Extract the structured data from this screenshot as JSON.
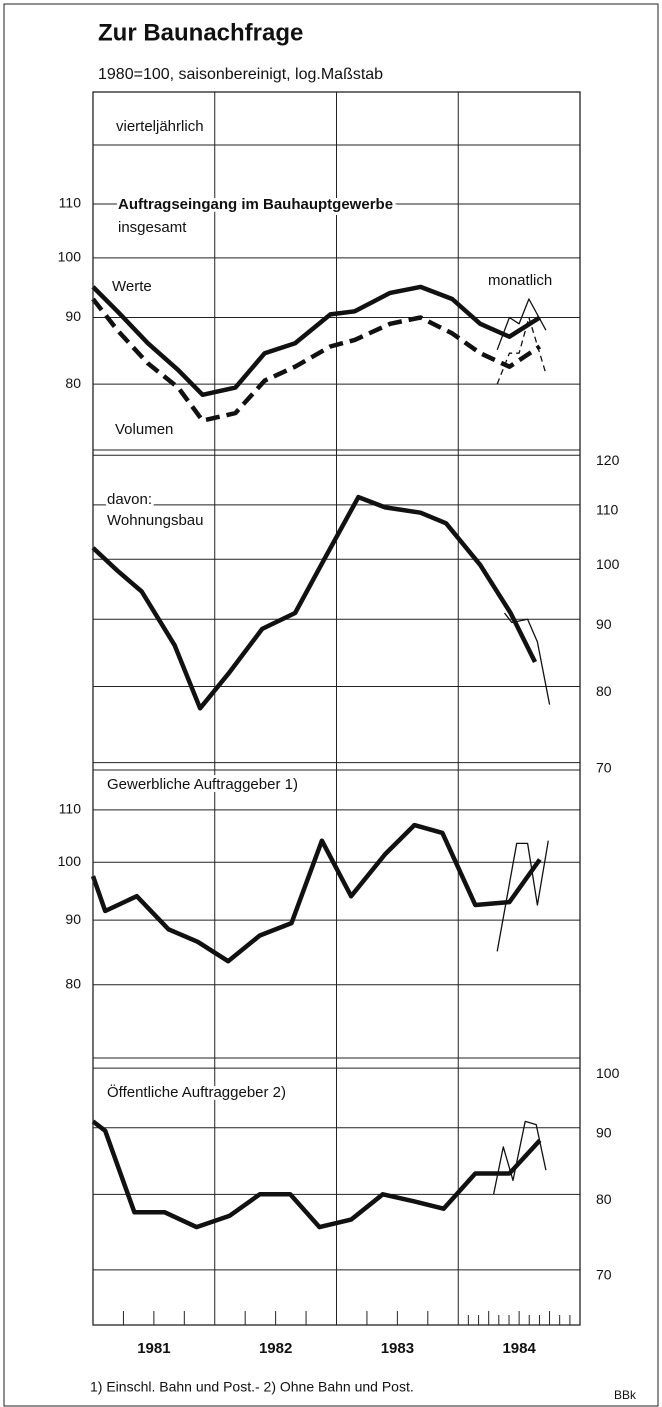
{
  "title": "Zur Baunachfrage",
  "subtitle": "1980=100, saisonbereinigt, log.Maßstab",
  "frequency_label": "vierteljährlich",
  "footnote": "1) Einschl. Bahn und Post.- 2) Ohne Bahn und Post.",
  "source": "BBk",
  "xlim": [
    1981,
    1985
  ],
  "xticks": [
    {
      "value": 1981.5,
      "label": "1981"
    },
    {
      "value": 1982.5,
      "label": "1982"
    },
    {
      "value": 1983.5,
      "label": "1983"
    },
    {
      "value": 1984.5,
      "label": "1984"
    }
  ],
  "x_gridlines": [
    1982,
    1983,
    1984
  ],
  "x_minor_ticks": [
    1981.25,
    1981.5,
    1981.75,
    1982.25,
    1982.5,
    1982.75,
    1983.25,
    1983.5,
    1983.75,
    1984.083,
    1984.167,
    1984.25,
    1984.333,
    1984.417,
    1984.5,
    1984.583,
    1984.667,
    1984.75,
    1984.833,
    1984.917
  ],
  "chart_data": [
    {
      "type": "line",
      "log_scale": true,
      "y_axis_side": "left",
      "labels": [
        "Auftragseingang im Bauhauptgewerbe",
        "insgesamt"
      ],
      "ylim": [
        71.2,
        134.1
      ],
      "yticks": [
        80,
        90,
        100,
        110
      ],
      "grid": true,
      "series": [
        {
          "name": "Werte",
          "color": "#111111",
          "thick": true,
          "dashed": false,
          "x": [
            1981,
            1981.2,
            1981.45,
            1981.7,
            1981.9,
            1982.17,
            1982.41,
            1982.66,
            1982.95,
            1983.15,
            1983.44,
            1983.69,
            1983.95,
            1984.18,
            1984.42,
            1984.67
          ],
          "values": [
            95,
            91,
            86,
            82,
            78.5,
            79.5,
            84.5,
            86,
            90.5,
            91,
            94,
            95,
            93,
            89,
            87,
            90
          ]
        },
        {
          "name": "Volumen",
          "color": "#111111",
          "thick": true,
          "dashed": true,
          "x": [
            1981,
            1981.2,
            1981.45,
            1981.7,
            1981.9,
            1982.17,
            1982.41,
            1982.66,
            1982.95,
            1983.15,
            1983.44,
            1983.69,
            1983.95,
            1984.18,
            1984.42,
            1984.67
          ],
          "values": [
            93,
            88,
            83,
            79.5,
            75,
            76,
            80.5,
            82.5,
            85.5,
            86.5,
            89,
            90,
            87.5,
            84.5,
            82.5,
            85.5
          ]
        },
        {
          "name": "monatlich",
          "color": "#111111",
          "thick": false,
          "dashed": false,
          "x": [
            1984.32,
            1984.42,
            1984.5,
            1984.58,
            1984.72
          ],
          "values": [
            85,
            90,
            89,
            93,
            88
          ]
        },
        {
          "color": "#111111",
          "thick": false,
          "dashed": true,
          "x": [
            1984.32,
            1984.42,
            1984.5,
            1984.58,
            1984.72
          ],
          "values": [
            80,
            84.5,
            84.5,
            90,
            81.5
          ]
        }
      ]
    },
    {
      "type": "line",
      "log_scale": true,
      "y_axis_side": "right",
      "labels": [
        "davon:",
        "Wohnungsbau"
      ],
      "ylim": [
        69.1,
        121.1
      ],
      "yticks": [
        70,
        80,
        90,
        100,
        110,
        120
      ],
      "grid": true,
      "series": [
        {
          "color": "#111111",
          "thick": true,
          "dashed": false,
          "x": [
            1981,
            1981.2,
            1981.4,
            1981.67,
            1981.88,
            1982.12,
            1982.39,
            1982.66,
            1982.9,
            1983.18,
            1983.4,
            1983.69,
            1983.9,
            1984.18,
            1984.43,
            1984.63
          ],
          "values": [
            102,
            98,
            94.5,
            86,
            77,
            82,
            88.5,
            91,
            100,
            111.5,
            109.5,
            108.5,
            106.5,
            99,
            91,
            83.5
          ]
        },
        {
          "color": "#111111",
          "thick": false,
          "dashed": false,
          "x": [
            1984.38,
            1984.44,
            1984.57,
            1984.65,
            1984.75
          ],
          "values": [
            91,
            89.5,
            90,
            86.5,
            77.5
          ]
        }
      ]
    },
    {
      "type": "line",
      "log_scale": true,
      "y_axis_side": "left",
      "labels": [
        "Gewerbliche Auftraggeber 1)"
      ],
      "ylim": [
        70.0,
        118.3
      ],
      "yticks": [
        80,
        90,
        100,
        110
      ],
      "grid": true,
      "series": [
        {
          "color": "#111111",
          "thick": true,
          "dashed": false,
          "x": [
            1981,
            1981.1,
            1981.36,
            1981.62,
            1981.86,
            1982.11,
            1982.37,
            1982.63,
            1982.88,
            1983.12,
            1983.4,
            1983.64,
            1983.87,
            1984.14,
            1984.42,
            1984.67
          ],
          "values": [
            97.5,
            91.5,
            94,
            88.5,
            86.5,
            83.5,
            87.5,
            89.5,
            104,
            94,
            101.5,
            107,
            105.5,
            92.5,
            93,
            100.5
          ]
        },
        {
          "color": "#111111",
          "thick": false,
          "dashed": false,
          "x": [
            1984.32,
            1984.48,
            1984.57,
            1984.65,
            1984.74
          ],
          "values": [
            85,
            103.5,
            103.5,
            92.5,
            104
          ]
        }
      ]
    },
    {
      "type": "line",
      "log_scale": true,
      "y_axis_side": "right",
      "labels": [
        "Öffentliche Auftraggeber 2)"
      ],
      "ylim": [
        63.5,
        101.8
      ],
      "yticks": [
        70,
        80,
        90,
        100
      ],
      "grid": true,
      "series": [
        {
          "color": "#111111",
          "thick": true,
          "dashed": false,
          "x": [
            1981,
            1981.1,
            1981.34,
            1981.59,
            1981.85,
            1982.12,
            1982.37,
            1982.62,
            1982.86,
            1983.12,
            1983.38,
            1983.64,
            1983.88,
            1984.14,
            1984.42,
            1984.67
          ],
          "values": [
            91,
            89.5,
            77.5,
            77.5,
            75.5,
            77,
            80,
            80,
            75.5,
            76.5,
            80,
            79,
            78,
            83,
            83,
            88
          ]
        },
        {
          "color": "#111111",
          "thick": false,
          "dashed": false,
          "x": [
            1984.29,
            1984.37,
            1984.45,
            1984.55,
            1984.64,
            1984.72
          ],
          "values": [
            80,
            87,
            82,
            91,
            90.5,
            83.5
          ]
        }
      ]
    }
  ]
}
